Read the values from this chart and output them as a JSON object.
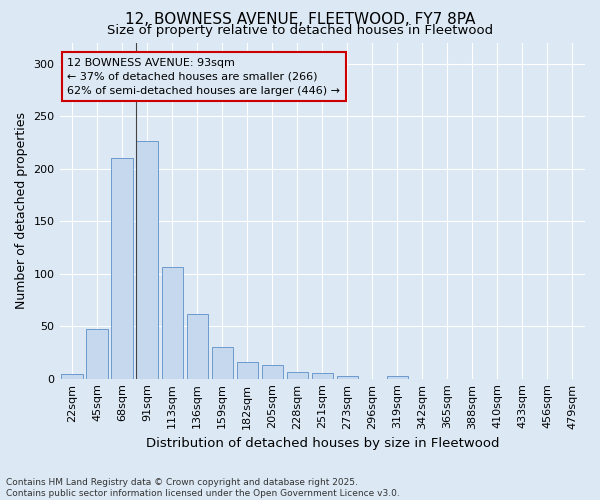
{
  "title1": "12, BOWNESS AVENUE, FLEETWOOD, FY7 8PA",
  "title2": "Size of property relative to detached houses in Fleetwood",
  "xlabel": "Distribution of detached houses by size in Fleetwood",
  "ylabel": "Number of detached properties",
  "bar_color": "#c5d8ee",
  "bar_edge_color": "#5b8fc9",
  "categories": [
    "22sqm",
    "45sqm",
    "68sqm",
    "91sqm",
    "113sqm",
    "136sqm",
    "159sqm",
    "182sqm",
    "205sqm",
    "228sqm",
    "251sqm",
    "273sqm",
    "296sqm",
    "319sqm",
    "342sqm",
    "365sqm",
    "388sqm",
    "410sqm",
    "433sqm",
    "456sqm",
    "479sqm"
  ],
  "values": [
    4,
    47,
    210,
    226,
    106,
    62,
    30,
    16,
    13,
    6,
    5,
    3,
    0,
    3,
    0,
    0,
    0,
    0,
    0,
    0,
    0
  ],
  "ylim": [
    0,
    320
  ],
  "yticks": [
    0,
    50,
    100,
    150,
    200,
    250,
    300
  ],
  "property_label": "12 BOWNESS AVENUE: 93sqm",
  "pct_smaller": "37% of detached houses are smaller (266)",
  "pct_larger": "62% of semi-detached houses are larger (446)",
  "vline_index": 3,
  "annotation_box_color": "#cc0000",
  "footnote1": "Contains HM Land Registry data © Crown copyright and database right 2025.",
  "footnote2": "Contains public sector information licensed under the Open Government Licence v3.0.",
  "background_color": "#dce9f5",
  "grid_color": "#ffffff",
  "title1_fontsize": 11,
  "title2_fontsize": 9.5,
  "axis_label_fontsize": 9,
  "tick_fontsize": 8,
  "annot_fontsize": 8,
  "footnote_fontsize": 6.5
}
